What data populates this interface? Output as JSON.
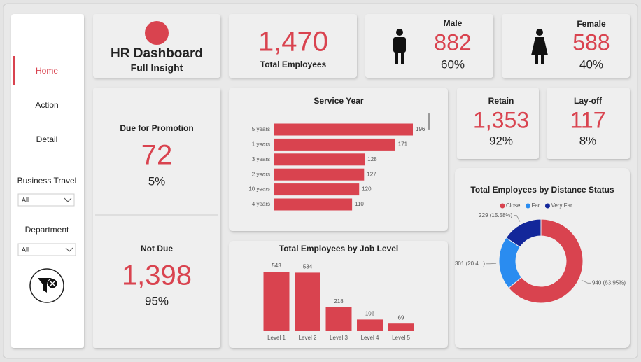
{
  "sidebar": {
    "nav": [
      "Home",
      "Action",
      "Detail"
    ],
    "filters": [
      {
        "label": "Business Travel",
        "value": "All"
      },
      {
        "label": "Department",
        "value": "All"
      }
    ]
  },
  "header": {
    "title": "HR Dashboard",
    "subtitle": "Full Insight"
  },
  "kpis": {
    "total": {
      "value": "1,470",
      "label": "Total Employees"
    },
    "male": {
      "label": "Male",
      "value": "882",
      "percent": "60%"
    },
    "female": {
      "label": "Female",
      "value": "588",
      "percent": "40%"
    },
    "promotion": {
      "label": "Due for Promotion",
      "value": "72",
      "percent": "5%"
    },
    "not_due": {
      "label": "Not Due",
      "value": "1,398",
      "percent": "95%"
    },
    "retain": {
      "label": "Retain",
      "value": "1,353",
      "percent": "92%"
    },
    "layoff": {
      "label": "Lay-off",
      "value": "117",
      "percent": "8%"
    }
  },
  "chart_data": [
    {
      "type": "bar",
      "orientation": "horizontal",
      "title": "Service Year",
      "categories": [
        "5 years",
        "1 years",
        "3 years",
        "2 years",
        "10 years",
        "4 years"
      ],
      "values": [
        196,
        171,
        128,
        127,
        120,
        110
      ],
      "color": "#d9434f"
    },
    {
      "type": "bar",
      "orientation": "vertical",
      "title": "Total Employees by Job Level",
      "categories": [
        "Level 1",
        "Level 2",
        "Level 3",
        "Level 4",
        "Level 5"
      ],
      "values": [
        543,
        534,
        218,
        106,
        69
      ],
      "color": "#d9434f"
    },
    {
      "type": "donut",
      "title": "Total Employees by Distance Status",
      "legend": "top",
      "categories": [
        "Close",
        "Far",
        "Very Far"
      ],
      "values": [
        940,
        301,
        229
      ],
      "value_labels": [
        "940 (63.95%)",
        "301 (20.4...)",
        "229 (15.58%)"
      ],
      "colors": [
        "#d9434f",
        "#2a8cf0",
        "#13279a"
      ]
    }
  ]
}
